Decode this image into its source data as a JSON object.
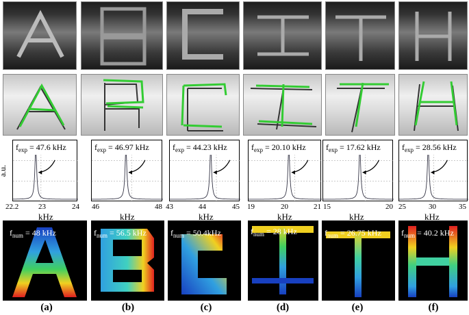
{
  "yaxis_label": "a.u.",
  "axis_unit": "kHz",
  "columns": [
    {
      "caption": "(a)",
      "fexp_value": "= 47.6 kHz",
      "fnum_value": "= 48 kHz",
      "ticks": [
        "22.2",
        "23",
        "24"
      ],
      "peak": 0.35
    },
    {
      "caption": "(b)",
      "fexp_value": "= 46.97 kHz",
      "fnum_value": "= 56.5 kHz",
      "ticks": [
        "46",
        "48"
      ],
      "peak": 0.48
    },
    {
      "caption": "(c)",
      "fexp_value": "= 44.23 kHz",
      "fnum_value": "= 50.4kHz",
      "ticks": [
        "43",
        "44",
        "45"
      ],
      "peak": 0.58
    },
    {
      "caption": "(d)",
      "fexp_value": "= 20.10 kHz",
      "fnum_value": "= 28 kHz",
      "ticks": [
        "19",
        "20",
        "21"
      ],
      "peak": 0.55
    },
    {
      "caption": "(e)",
      "fexp_value": "= 17.62 kHz",
      "fnum_value": "= 26.75 kHz",
      "ticks": [
        "15",
        "20"
      ],
      "peak": 0.52
    },
    {
      "caption": "(f)",
      "fexp_value": "= 28.56 kHz",
      "fnum_value": "= 40.2 kHz",
      "ticks": [
        "25",
        "30",
        "35"
      ],
      "peak": 0.42
    }
  ],
  "fexp_prefix": "f",
  "fexp_sub": "exp",
  "fnum_prefix": "f",
  "fnum_sub": "num",
  "colors": {
    "hot": "#e02020",
    "warm": "#f0d020",
    "mid": "#40d060",
    "cool": "#30a0e0",
    "cold": "#1840c0"
  }
}
